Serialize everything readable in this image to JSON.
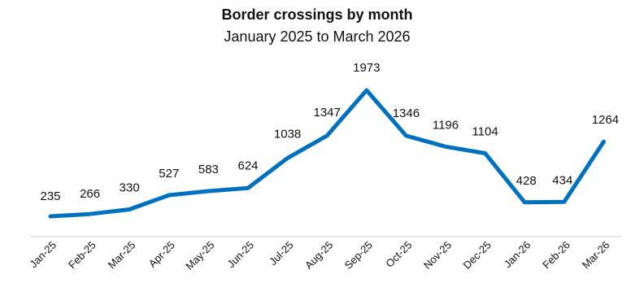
{
  "chart_data": {
    "type": "line",
    "title": "Border crossings by month",
    "subtitle": "January 2025 to March 2026",
    "categories": [
      "Jan-25",
      "Feb-25",
      "Mar-25",
      "Apr-25",
      "May-25",
      "Jun-25",
      "Jul-25",
      "Aug-25",
      "Sep-25",
      "Oct-25",
      "Nov-25",
      "Dec-25",
      "Jan-26",
      "Feb-26",
      "Mar-26"
    ],
    "series": [
      {
        "values": [
          235,
          266,
          330,
          527,
          583,
          624,
          1038,
          1347,
          1973,
          1346,
          1196,
          1104,
          428,
          434,
          1264
        ]
      }
    ],
    "data_labels": true,
    "grid": false,
    "legend": "none",
    "colors": {
      "line": "#0070C0",
      "axis": "#C8C8C8"
    }
  }
}
